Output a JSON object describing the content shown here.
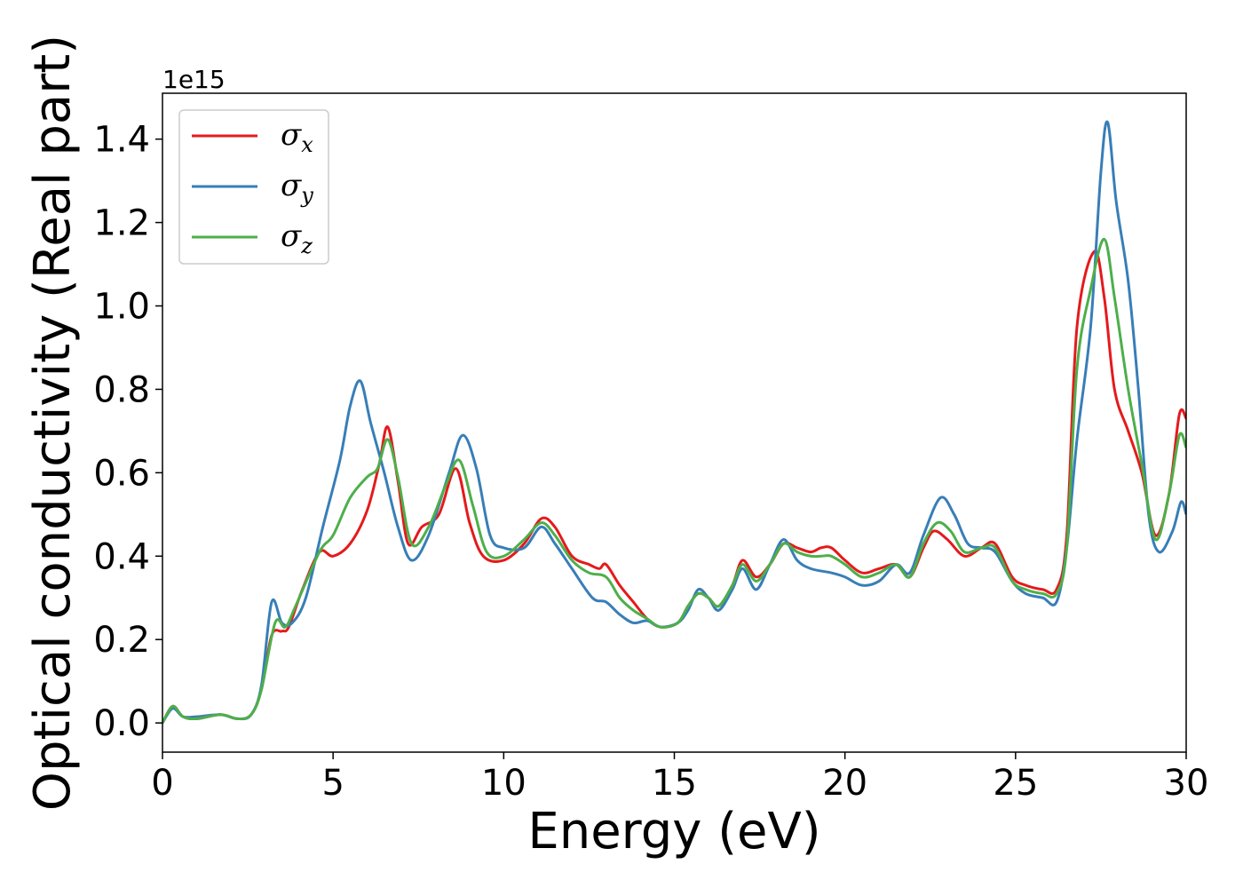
{
  "chart_data": {
    "type": "line",
    "xlabel": "Energy (eV)",
    "ylabel": "Optical conductivity (Real part)",
    "y_offset_label": "1e15",
    "xlim": [
      0,
      30
    ],
    "ylim": [
      -0.07,
      1.51
    ],
    "xticks": [
      0,
      5,
      10,
      15,
      20,
      25,
      30
    ],
    "yticks": [
      0.0,
      0.2,
      0.4,
      0.6,
      0.8,
      1.0,
      1.2,
      1.4
    ],
    "ytick_labels": [
      "0.0",
      "0.2",
      "0.4",
      "0.6",
      "0.8",
      "1.0",
      "1.2",
      "1.4"
    ],
    "grid": false,
    "legend_position": "upper-left",
    "series": [
      {
        "name": "σx",
        "symbol": "σ",
        "subscript": "x",
        "color": "#e41a1c",
        "points": [
          [
            0,
            0
          ],
          [
            0.3,
            0.04
          ],
          [
            0.6,
            0.015
          ],
          [
            1,
            0.01
          ],
          [
            1.7,
            0.02
          ],
          [
            2.2,
            0.01
          ],
          [
            2.6,
            0.02
          ],
          [
            2.9,
            0.08
          ],
          [
            3.2,
            0.21
          ],
          [
            3.5,
            0.22
          ],
          [
            3.7,
            0.23
          ],
          [
            4.1,
            0.32
          ],
          [
            4.6,
            0.41
          ],
          [
            5,
            0.4
          ],
          [
            5.5,
            0.43
          ],
          [
            6,
            0.51
          ],
          [
            6.35,
            0.62
          ],
          [
            6.6,
            0.71
          ],
          [
            6.9,
            0.58
          ],
          [
            7.2,
            0.43
          ],
          [
            7.6,
            0.47
          ],
          [
            8.1,
            0.5
          ],
          [
            8.6,
            0.61
          ],
          [
            9,
            0.48
          ],
          [
            9.4,
            0.4
          ],
          [
            10,
            0.39
          ],
          [
            10.6,
            0.43
          ],
          [
            11.1,
            0.49
          ],
          [
            11.5,
            0.47
          ],
          [
            12,
            0.4
          ],
          [
            12.5,
            0.38
          ],
          [
            12.8,
            0.37
          ],
          [
            13,
            0.38
          ],
          [
            13.4,
            0.33
          ],
          [
            13.8,
            0.29
          ],
          [
            14.2,
            0.25
          ],
          [
            14.6,
            0.23
          ],
          [
            15.1,
            0.24
          ],
          [
            15.4,
            0.28
          ],
          [
            15.7,
            0.31
          ],
          [
            16,
            0.3
          ],
          [
            16.3,
            0.28
          ],
          [
            16.7,
            0.33
          ],
          [
            17,
            0.39
          ],
          [
            17.4,
            0.35
          ],
          [
            17.8,
            0.38
          ],
          [
            18.2,
            0.43
          ],
          [
            18.6,
            0.42
          ],
          [
            19,
            0.41
          ],
          [
            19.3,
            0.42
          ],
          [
            19.6,
            0.42
          ],
          [
            20,
            0.39
          ],
          [
            20.5,
            0.36
          ],
          [
            21,
            0.37
          ],
          [
            21.5,
            0.38
          ],
          [
            21.9,
            0.35
          ],
          [
            22.3,
            0.42
          ],
          [
            22.6,
            0.46
          ],
          [
            23,
            0.44
          ],
          [
            23.5,
            0.4
          ],
          [
            24,
            0.42
          ],
          [
            24.4,
            0.43
          ],
          [
            24.9,
            0.35
          ],
          [
            25.3,
            0.33
          ],
          [
            25.8,
            0.32
          ],
          [
            26.2,
            0.32
          ],
          [
            26.5,
            0.45
          ],
          [
            26.8,
            0.95
          ],
          [
            27.3,
            1.13
          ],
          [
            27.6,
            1.02
          ],
          [
            27.9,
            0.8
          ],
          [
            28.3,
            0.7
          ],
          [
            28.7,
            0.6
          ],
          [
            29.1,
            0.45
          ],
          [
            29.5,
            0.55
          ],
          [
            29.8,
            0.74
          ],
          [
            30,
            0.73
          ]
        ]
      },
      {
        "name": "σy",
        "symbol": "σ",
        "subscript": "y",
        "color": "#377eb8",
        "points": [
          [
            0,
            0
          ],
          [
            0.3,
            0.035
          ],
          [
            0.6,
            0.015
          ],
          [
            1,
            0.015
          ],
          [
            1.7,
            0.02
          ],
          [
            2.2,
            0.01
          ],
          [
            2.6,
            0.02
          ],
          [
            2.9,
            0.09
          ],
          [
            3.2,
            0.29
          ],
          [
            3.5,
            0.24
          ],
          [
            3.8,
            0.24
          ],
          [
            4.2,
            0.3
          ],
          [
            4.7,
            0.47
          ],
          [
            5.2,
            0.63
          ],
          [
            5.5,
            0.76
          ],
          [
            5.8,
            0.82
          ],
          [
            6.1,
            0.72
          ],
          [
            6.5,
            0.6
          ],
          [
            6.9,
            0.47
          ],
          [
            7.3,
            0.39
          ],
          [
            7.8,
            0.45
          ],
          [
            8.4,
            0.6
          ],
          [
            8.8,
            0.69
          ],
          [
            9.2,
            0.61
          ],
          [
            9.6,
            0.45
          ],
          [
            10,
            0.42
          ],
          [
            10.6,
            0.42
          ],
          [
            11.1,
            0.47
          ],
          [
            11.5,
            0.43
          ],
          [
            12,
            0.37
          ],
          [
            12.6,
            0.3
          ],
          [
            13,
            0.29
          ],
          [
            13.4,
            0.26
          ],
          [
            13.8,
            0.24
          ],
          [
            14.2,
            0.245
          ],
          [
            14.6,
            0.23
          ],
          [
            15.1,
            0.24
          ],
          [
            15.4,
            0.27
          ],
          [
            15.7,
            0.32
          ],
          [
            16,
            0.3
          ],
          [
            16.3,
            0.27
          ],
          [
            16.7,
            0.32
          ],
          [
            17,
            0.37
          ],
          [
            17.4,
            0.32
          ],
          [
            17.8,
            0.38
          ],
          [
            18.2,
            0.44
          ],
          [
            18.6,
            0.39
          ],
          [
            19,
            0.37
          ],
          [
            19.6,
            0.36
          ],
          [
            20,
            0.35
          ],
          [
            20.5,
            0.33
          ],
          [
            21,
            0.34
          ],
          [
            21.5,
            0.38
          ],
          [
            21.9,
            0.36
          ],
          [
            22.3,
            0.45
          ],
          [
            22.8,
            0.54
          ],
          [
            23.2,
            0.5
          ],
          [
            23.6,
            0.43
          ],
          [
            24,
            0.42
          ],
          [
            24.4,
            0.41
          ],
          [
            24.9,
            0.34
          ],
          [
            25.3,
            0.31
          ],
          [
            25.8,
            0.3
          ],
          [
            26.2,
            0.29
          ],
          [
            26.5,
            0.42
          ],
          [
            26.8,
            0.68
          ],
          [
            27.2,
            0.95
          ],
          [
            27.5,
            1.32
          ],
          [
            27.7,
            1.44
          ],
          [
            27.95,
            1.25
          ],
          [
            28.3,
            1.06
          ],
          [
            28.6,
            0.8
          ],
          [
            28.9,
            0.5
          ],
          [
            29.2,
            0.41
          ],
          [
            29.6,
            0.46
          ],
          [
            29.85,
            0.53
          ],
          [
            30,
            0.5
          ]
        ]
      },
      {
        "name": "σz",
        "symbol": "σ",
        "subscript": "z",
        "color": "#4daf4a",
        "points": [
          [
            0,
            0
          ],
          [
            0.3,
            0.04
          ],
          [
            0.6,
            0.015
          ],
          [
            1,
            0.01
          ],
          [
            1.7,
            0.02
          ],
          [
            2.2,
            0.01
          ],
          [
            2.6,
            0.02
          ],
          [
            2.9,
            0.08
          ],
          [
            3.3,
            0.24
          ],
          [
            3.6,
            0.23
          ],
          [
            3.9,
            0.28
          ],
          [
            4.6,
            0.41
          ],
          [
            5,
            0.45
          ],
          [
            5.5,
            0.54
          ],
          [
            6,
            0.59
          ],
          [
            6.3,
            0.61
          ],
          [
            6.6,
            0.68
          ],
          [
            6.9,
            0.59
          ],
          [
            7.3,
            0.43
          ],
          [
            7.8,
            0.47
          ],
          [
            8.3,
            0.57
          ],
          [
            8.7,
            0.63
          ],
          [
            9.1,
            0.52
          ],
          [
            9.5,
            0.41
          ],
          [
            10,
            0.4
          ],
          [
            10.6,
            0.44
          ],
          [
            11.1,
            0.48
          ],
          [
            11.5,
            0.45
          ],
          [
            12,
            0.39
          ],
          [
            12.5,
            0.36
          ],
          [
            13,
            0.35
          ],
          [
            13.4,
            0.3
          ],
          [
            13.8,
            0.27
          ],
          [
            14.2,
            0.25
          ],
          [
            14.6,
            0.23
          ],
          [
            15.1,
            0.24
          ],
          [
            15.4,
            0.28
          ],
          [
            15.7,
            0.31
          ],
          [
            16,
            0.3
          ],
          [
            16.3,
            0.28
          ],
          [
            16.7,
            0.33
          ],
          [
            17,
            0.38
          ],
          [
            17.4,
            0.34
          ],
          [
            17.8,
            0.38
          ],
          [
            18.2,
            0.43
          ],
          [
            18.6,
            0.41
          ],
          [
            19,
            0.4
          ],
          [
            19.3,
            0.4
          ],
          [
            19.6,
            0.4
          ],
          [
            20,
            0.38
          ],
          [
            20.5,
            0.35
          ],
          [
            21,
            0.36
          ],
          [
            21.5,
            0.38
          ],
          [
            21.9,
            0.35
          ],
          [
            22.3,
            0.43
          ],
          [
            22.7,
            0.48
          ],
          [
            23.1,
            0.46
          ],
          [
            23.5,
            0.41
          ],
          [
            24,
            0.42
          ],
          [
            24.4,
            0.42
          ],
          [
            24.9,
            0.34
          ],
          [
            25.3,
            0.32
          ],
          [
            25.8,
            0.31
          ],
          [
            26.2,
            0.31
          ],
          [
            26.5,
            0.42
          ],
          [
            26.8,
            0.85
          ],
          [
            27.2,
            1.04
          ],
          [
            27.6,
            1.16
          ],
          [
            27.9,
            1.02
          ],
          [
            28.3,
            0.8
          ],
          [
            28.7,
            0.62
          ],
          [
            29.1,
            0.44
          ],
          [
            29.5,
            0.55
          ],
          [
            29.8,
            0.69
          ],
          [
            30,
            0.66
          ]
        ]
      }
    ]
  }
}
